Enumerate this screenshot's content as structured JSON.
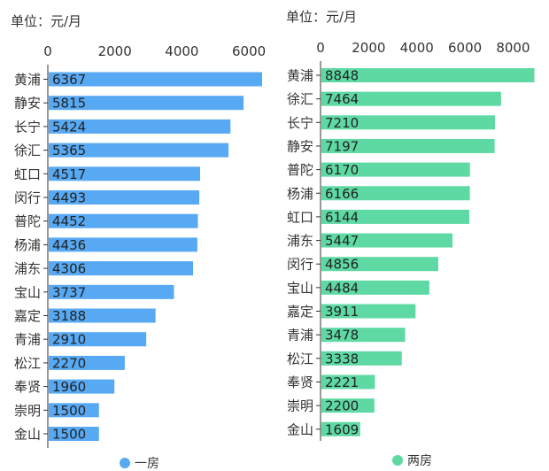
{
  "chart_data": [
    {
      "type": "bar",
      "orientation": "horizontal",
      "unit_label": "单位：元/月",
      "categories": [
        "黄浦",
        "静安",
        "长宁",
        "徐汇",
        "虹口",
        "闵行",
        "普陀",
        "杨浦",
        "浦东",
        "宝山",
        "嘉定",
        "青浦",
        "松江",
        "奉贤",
        "崇明",
        "金山"
      ],
      "series": [
        {
          "name": "一房",
          "values": [
            6367,
            5815,
            5424,
            5365,
            4517,
            4493,
            4452,
            4436,
            4306,
            3737,
            3188,
            2910,
            2270,
            1960,
            1500,
            1500
          ]
        }
      ],
      "xticks": [
        0,
        2000,
        4000,
        6000
      ],
      "xlim": [
        0,
        6500
      ],
      "grid": false,
      "legend_position": "bottom",
      "color": "#58A9F3"
    },
    {
      "type": "bar",
      "orientation": "horizontal",
      "unit_label": "单位：元/月",
      "categories": [
        "黄浦",
        "徐汇",
        "长宁",
        "静安",
        "普陀",
        "杨浦",
        "虹口",
        "浦东",
        "闵行",
        "宝山",
        "嘉定",
        "青浦",
        "松江",
        "奉贤",
        "崇明",
        "金山"
      ],
      "series": [
        {
          "name": "两房",
          "values": [
            8848,
            7464,
            7210,
            7197,
            6170,
            6166,
            6144,
            5447,
            4856,
            4484,
            3911,
            3478,
            3338,
            2221,
            2200,
            1609
          ]
        }
      ],
      "xticks": [
        0,
        2000,
        4000,
        6000,
        8000
      ],
      "xlim": [
        0,
        9000
      ],
      "grid": false,
      "legend_position": "bottom",
      "color": "#5ED9A3"
    }
  ]
}
